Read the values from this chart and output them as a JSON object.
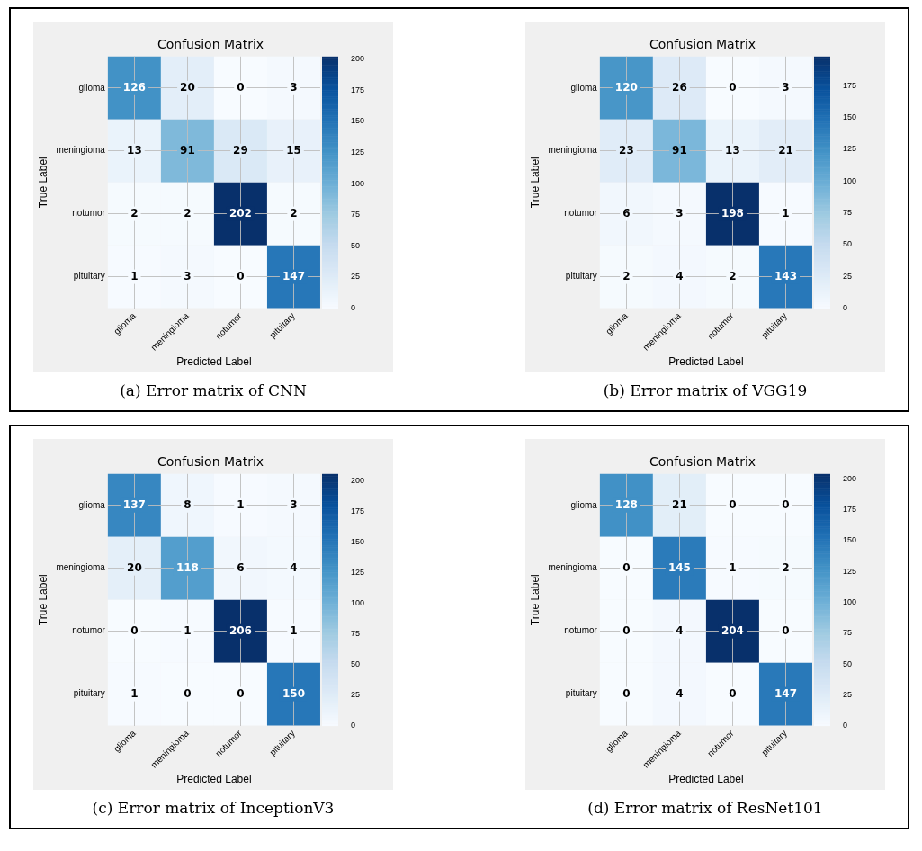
{
  "chart_data": [
    {
      "type": "heatmap",
      "title": "Confusion Matrix",
      "xlabel": "Predicted Label",
      "ylabel": "True Label",
      "categories": [
        "glioma",
        "meningioma",
        "notumor",
        "pituitary"
      ],
      "y_categories": [
        "glioma",
        "meningioma",
        "notumor",
        "pituitary"
      ],
      "cells": [
        [
          126,
          20,
          0,
          3
        ],
        [
          13,
          91,
          29,
          15
        ],
        [
          2,
          2,
          202,
          2
        ],
        [
          1,
          3,
          0,
          147
        ]
      ],
      "clim": [
        0,
        202
      ],
      "cticks": [
        0,
        25,
        50,
        75,
        100,
        125,
        150,
        175,
        200
      ],
      "data_labels": true,
      "grid": true,
      "annotations": [
        "(a) Error matrix of CNN"
      ]
    },
    {
      "type": "heatmap",
      "title": "Confusion Matrix",
      "xlabel": "Predicted Label",
      "ylabel": "True Label",
      "categories": [
        "glioma",
        "meningioma",
        "notumor",
        "pituitary"
      ],
      "y_categories": [
        "glioma",
        "meningioma",
        "notumor",
        "pituitary"
      ],
      "cells": [
        [
          120,
          26,
          0,
          3
        ],
        [
          23,
          91,
          13,
          21
        ],
        [
          6,
          3,
          198,
          1
        ],
        [
          2,
          4,
          2,
          143
        ]
      ],
      "clim": [
        0,
        198
      ],
      "cticks": [
        0,
        25,
        50,
        75,
        100,
        125,
        150,
        175
      ],
      "data_labels": true,
      "grid": true,
      "annotations": [
        "(b) Error matrix of VGG19"
      ]
    },
    {
      "type": "heatmap",
      "title": "Confusion Matrix",
      "xlabel": "Predicted Label",
      "ylabel": "True Label",
      "categories": [
        "glioma",
        "meningioma",
        "notumor",
        "pituitary"
      ],
      "y_categories": [
        "glioma",
        "meningioma",
        "notumor",
        "pituitary"
      ],
      "cells": [
        [
          137,
          8,
          1,
          3
        ],
        [
          20,
          118,
          6,
          4
        ],
        [
          0,
          1,
          206,
          1
        ],
        [
          1,
          0,
          0,
          150
        ]
      ],
      "clim": [
        0,
        206
      ],
      "cticks": [
        0,
        25,
        50,
        75,
        100,
        125,
        150,
        175,
        200
      ],
      "data_labels": true,
      "grid": true,
      "annotations": [
        "(c) Error matrix of InceptionV3"
      ]
    },
    {
      "type": "heatmap",
      "title": "Confusion Matrix",
      "xlabel": "Predicted Label",
      "ylabel": "True Label",
      "categories": [
        "glioma",
        "meningioma",
        "notumor",
        "pituitary"
      ],
      "y_categories": [
        "glioma",
        "meningioma",
        "notumor",
        "pituitary"
      ],
      "cells": [
        [
          128,
          21,
          0,
          0
        ],
        [
          0,
          145,
          1,
          2
        ],
        [
          0,
          4,
          204,
          0
        ],
        [
          0,
          4,
          0,
          147
        ]
      ],
      "clim": [
        0,
        204
      ],
      "cticks": [
        0,
        25,
        50,
        75,
        100,
        125,
        150,
        175,
        200
      ],
      "data_labels": true,
      "grid": true,
      "annotations": [
        "(d) Error matrix of ResNet101"
      ]
    }
  ]
}
